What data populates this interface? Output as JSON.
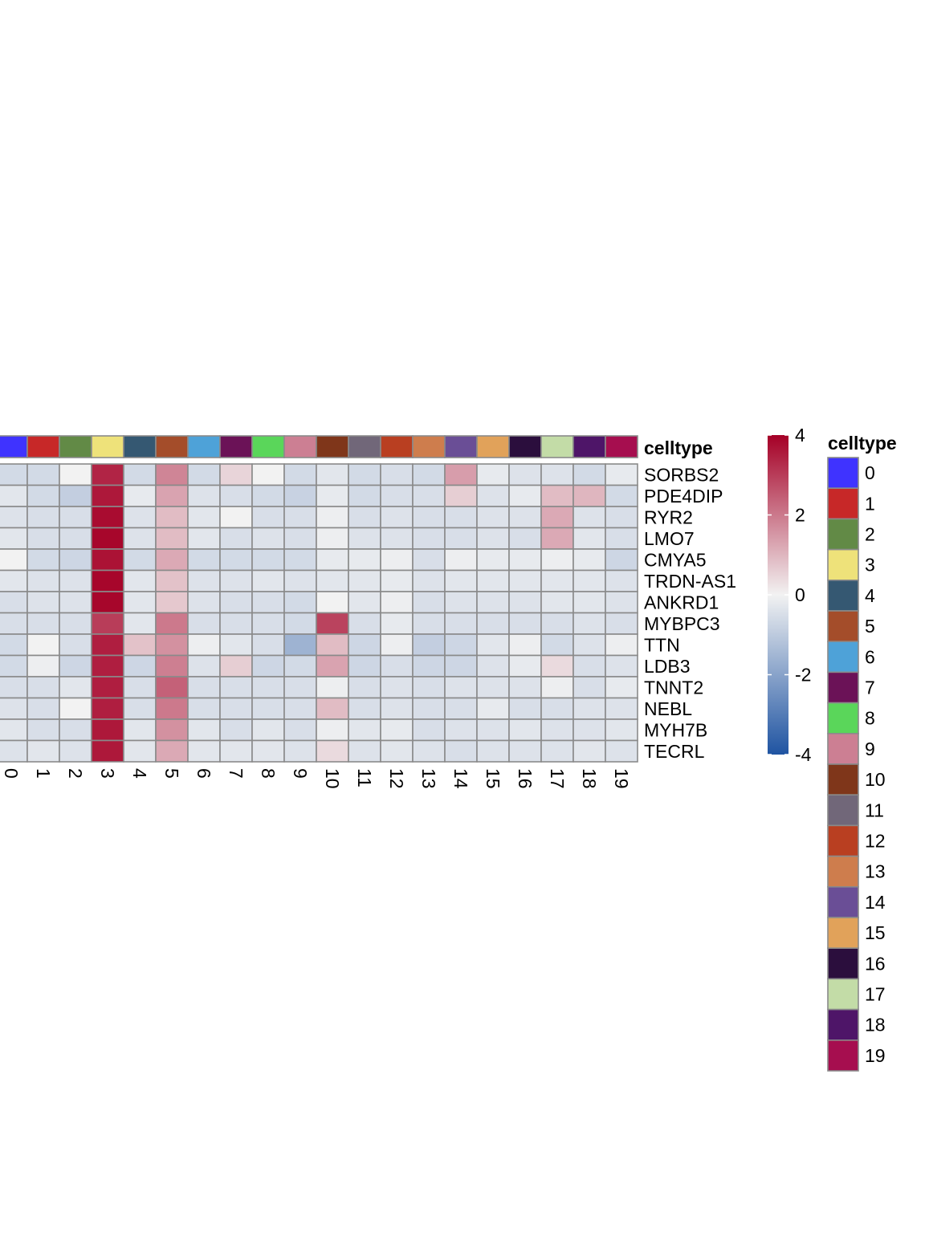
{
  "chart_data": {
    "type": "heatmap",
    "title": "",
    "annotation_label": "celltype",
    "columns": [
      "0",
      "1",
      "2",
      "3",
      "4",
      "5",
      "6",
      "7",
      "8",
      "9",
      "10",
      "11",
      "12",
      "13",
      "14",
      "15",
      "16",
      "17",
      "18",
      "19"
    ],
    "rows": [
      "SORBS2",
      "PDE4DIP",
      "RYR2",
      "LMO7",
      "CMYA5",
      "TRDN-AS1",
      "ANKRD1",
      "MYBPC3",
      "TTN",
      "LDB3",
      "TNNT2",
      "NEBL",
      "MYH7B",
      "TECRL"
    ],
    "values": [
      [
        -0.6,
        -0.6,
        0.0,
        3.4,
        -0.6,
        1.8,
        -0.6,
        0.5,
        0.0,
        -0.6,
        -0.3,
        -0.6,
        -0.5,
        -0.6,
        1.4,
        -0.2,
        -0.4,
        -0.4,
        -0.6,
        -0.2
      ],
      [
        -0.3,
        -0.6,
        -0.9,
        3.6,
        -0.2,
        1.3,
        -0.4,
        -0.5,
        -0.6,
        -0.8,
        -0.2,
        -0.6,
        -0.5,
        -0.5,
        0.6,
        -0.4,
        -0.2,
        0.9,
        1.0,
        -0.6
      ],
      [
        -0.4,
        -0.5,
        -0.5,
        3.8,
        -0.4,
        0.9,
        -0.3,
        0.0,
        -0.5,
        -0.5,
        -0.1,
        -0.5,
        -0.4,
        -0.5,
        -0.5,
        -0.4,
        -0.4,
        1.2,
        -0.4,
        -0.5
      ],
      [
        -0.3,
        -0.5,
        -0.5,
        3.9,
        -0.4,
        0.9,
        -0.3,
        -0.5,
        -0.4,
        -0.5,
        -0.1,
        -0.4,
        -0.4,
        -0.5,
        -0.5,
        -0.4,
        -0.5,
        1.2,
        -0.3,
        -0.5
      ],
      [
        0.0,
        -0.6,
        -0.7,
        3.7,
        -0.6,
        1.2,
        -0.6,
        -0.6,
        -0.6,
        -0.6,
        -0.2,
        -0.2,
        -0.1,
        -0.5,
        -0.1,
        -0.2,
        -0.2,
        -0.1,
        -0.2,
        -0.7
      ],
      [
        -0.3,
        -0.4,
        -0.4,
        3.9,
        -0.3,
        0.8,
        -0.4,
        -0.4,
        -0.3,
        -0.4,
        -0.3,
        -0.3,
        -0.2,
        -0.4,
        -0.3,
        -0.3,
        -0.3,
        -0.3,
        -0.3,
        -0.4
      ],
      [
        -0.5,
        -0.4,
        -0.4,
        3.9,
        -0.3,
        0.7,
        -0.4,
        -0.5,
        -0.5,
        -0.6,
        0.0,
        -0.3,
        -0.1,
        -0.5,
        -0.4,
        -0.4,
        -0.4,
        -0.3,
        -0.3,
        -0.4
      ],
      [
        -0.5,
        -0.5,
        -0.5,
        3.0,
        -0.3,
        2.0,
        -0.5,
        -0.5,
        -0.5,
        -0.6,
        2.9,
        -0.5,
        -0.2,
        -0.5,
        -0.5,
        -0.5,
        -0.5,
        -0.5,
        -0.4,
        -0.5
      ],
      [
        -0.6,
        0.0,
        -0.5,
        3.5,
        0.8,
        1.6,
        -0.1,
        -0.3,
        -0.5,
        -1.6,
        0.9,
        -0.7,
        -0.1,
        -0.9,
        -0.7,
        -0.3,
        -0.1,
        -0.6,
        -0.4,
        -0.1
      ],
      [
        -0.6,
        -0.1,
        -0.7,
        3.5,
        -0.7,
        1.9,
        -0.4,
        0.6,
        -0.7,
        -0.6,
        1.3,
        -0.7,
        -0.5,
        -0.7,
        -0.7,
        -0.4,
        -0.2,
        0.4,
        -0.5,
        -0.4
      ],
      [
        -0.5,
        -0.5,
        -0.3,
        3.5,
        -0.5,
        2.4,
        -0.5,
        -0.5,
        -0.5,
        -0.5,
        -0.1,
        -0.5,
        -0.4,
        -0.5,
        -0.4,
        -0.4,
        -0.4,
        -0.1,
        -0.5,
        -0.2
      ],
      [
        -0.4,
        -0.5,
        0.0,
        3.5,
        -0.5,
        2.0,
        -0.5,
        -0.5,
        -0.5,
        -0.5,
        0.9,
        -0.5,
        -0.4,
        -0.5,
        -0.5,
        -0.2,
        -0.5,
        -0.5,
        -0.4,
        -0.4
      ],
      [
        -0.3,
        -0.5,
        -0.5,
        3.6,
        -0.3,
        1.6,
        -0.3,
        -0.5,
        -0.3,
        -0.5,
        -0.1,
        -0.3,
        -0.2,
        -0.5,
        -0.4,
        -0.4,
        -0.3,
        -0.4,
        -0.4,
        -0.3
      ],
      [
        -0.4,
        -0.3,
        -0.4,
        3.6,
        -0.3,
        1.2,
        -0.3,
        -0.3,
        -0.3,
        -0.4,
        0.4,
        -0.4,
        -0.3,
        -0.4,
        -0.5,
        -0.4,
        -0.4,
        -0.4,
        -0.3,
        -0.4
      ]
    ],
    "celltype_colors": [
      "#3F33FF",
      "#C72828",
      "#628A46",
      "#EEE27A",
      "#355872",
      "#A44D2A",
      "#4EA2D8",
      "#6B1257",
      "#5AD65A",
      "#CC7F93",
      "#7F361A",
      "#716779",
      "#B93F21",
      "#CE7D4D",
      "#6A4E96",
      "#E1A25A",
      "#2B0E3D",
      "#C3DCA7",
      "#4E1568",
      "#A60E4F"
    ],
    "colorbar": {
      "range": [
        -4,
        4
      ],
      "ticks": [
        4,
        2,
        0,
        -2,
        -4
      ],
      "tick_labels": [
        "4",
        "2",
        "0",
        "-2",
        "-4"
      ],
      "low_color": "#1F54A2",
      "mid_color": "#F2F2F2",
      "high_color": "#A50026"
    },
    "legend": {
      "title": "celltype",
      "labels": [
        "0",
        "1",
        "2",
        "3",
        "4",
        "5",
        "6",
        "7",
        "8",
        "9",
        "10",
        "11",
        "12",
        "13",
        "14",
        "15",
        "16",
        "17",
        "18",
        "19"
      ]
    }
  }
}
